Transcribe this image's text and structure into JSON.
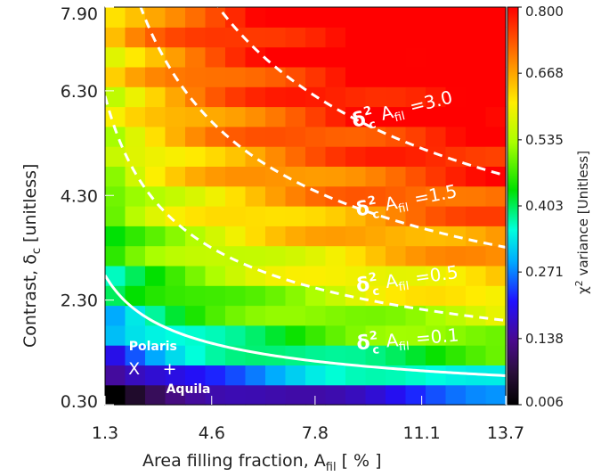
{
  "chart_data": {
    "type": "heatmap",
    "title": "",
    "xlabel": {
      "main": "Area filling fraction, A",
      "sub": "fil",
      "unit": "[ % ]"
    },
    "ylabel": {
      "main": "Contrast, δ",
      "sub": "c",
      "unit": "[unitless]"
    },
    "colorbar_label": {
      "sup": "2",
      "main": " variance [Unitless]",
      "prefix": "χ"
    },
    "x_ticks": [
      "1.3",
      "4.6",
      "7.8",
      "11.1",
      "13.7"
    ],
    "x_tick_values": [
      1.3,
      4.6,
      7.8,
      11.1,
      13.7
    ],
    "y_ticks": [
      "0.30",
      "2.30",
      "4.30",
      "6.30",
      "7.90"
    ],
    "y_tick_values": [
      0.3,
      2.3,
      4.3,
      6.3,
      7.9
    ],
    "xlim": [
      1.3,
      13.7
    ],
    "ylim": [
      0.3,
      7.9
    ],
    "colorbar_ticks": [
      "0.006",
      "0.138",
      "0.271",
      "0.403",
      "0.535",
      "0.668",
      "0.800"
    ],
    "colorbar_range": [
      0.006,
      0.8
    ],
    "grid": {
      "nx": 20,
      "ny": 20
    },
    "curves": [
      {
        "label_main": "δ",
        "label_sub": "c",
        "label_sup": "2",
        "label_A": "A",
        "label_Asub": "fil",
        "label_eq": "=3.0",
        "k": 3.0,
        "style": "dashed"
      },
      {
        "label_main": "δ",
        "label_sub": "c",
        "label_sup": "2",
        "label_A": "A",
        "label_Asub": "fil",
        "label_eq": "=1.5",
        "k": 1.5,
        "style": "dashed"
      },
      {
        "label_main": "δ",
        "label_sub": "c",
        "label_sup": "2",
        "label_A": "A",
        "label_Asub": "fil",
        "label_eq": "=0.5",
        "k": 0.5,
        "style": "dashed"
      },
      {
        "label_main": "δ",
        "label_sub": "c",
        "label_sup": "2",
        "label_A": "A",
        "label_Asub": "fil",
        "label_eq": "=0.1",
        "k": 0.1,
        "style": "solid"
      }
    ],
    "markers": [
      {
        "label": "Polaris",
        "symbol": "X",
        "x": 2.2,
        "y": 1.0
      },
      {
        "label": "Aquila",
        "symbol": "+",
        "x": 3.3,
        "y": 1.0
      }
    ]
  }
}
